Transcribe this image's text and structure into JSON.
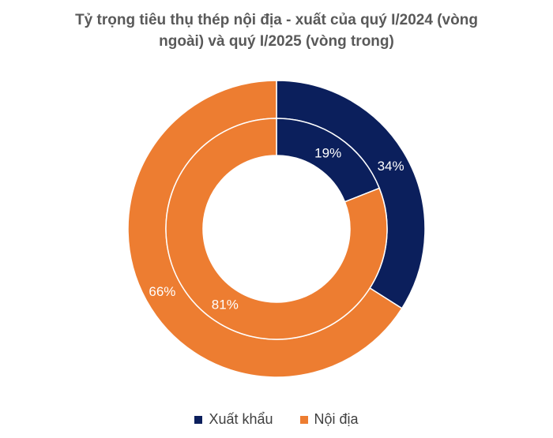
{
  "chart_data": {
    "type": "pie",
    "title": "Tỷ trọng tiêu thụ thép nội địa - xuất của quý I/2024 (vòng ngoài) và quý I/2025 (vòng trong)",
    "title_lines": [
      "Tỷ trọng tiêu thụ thép nội địa - xuất của quý I/2024 (vòng",
      "ngoài) và quý I/2025 (vòng trong)"
    ],
    "categories": [
      "Xuất khẩu",
      "Nội địa"
    ],
    "colors": [
      "#0b1f5c",
      "#ed7d31"
    ],
    "series": [
      {
        "ring": "outer",
        "values": [
          34,
          66
        ],
        "labels": [
          "34%",
          "66%"
        ]
      },
      {
        "ring": "inner",
        "values": [
          19,
          81
        ],
        "labels": [
          "19%",
          "81%"
        ]
      }
    ],
    "legend_position": "bottom"
  }
}
